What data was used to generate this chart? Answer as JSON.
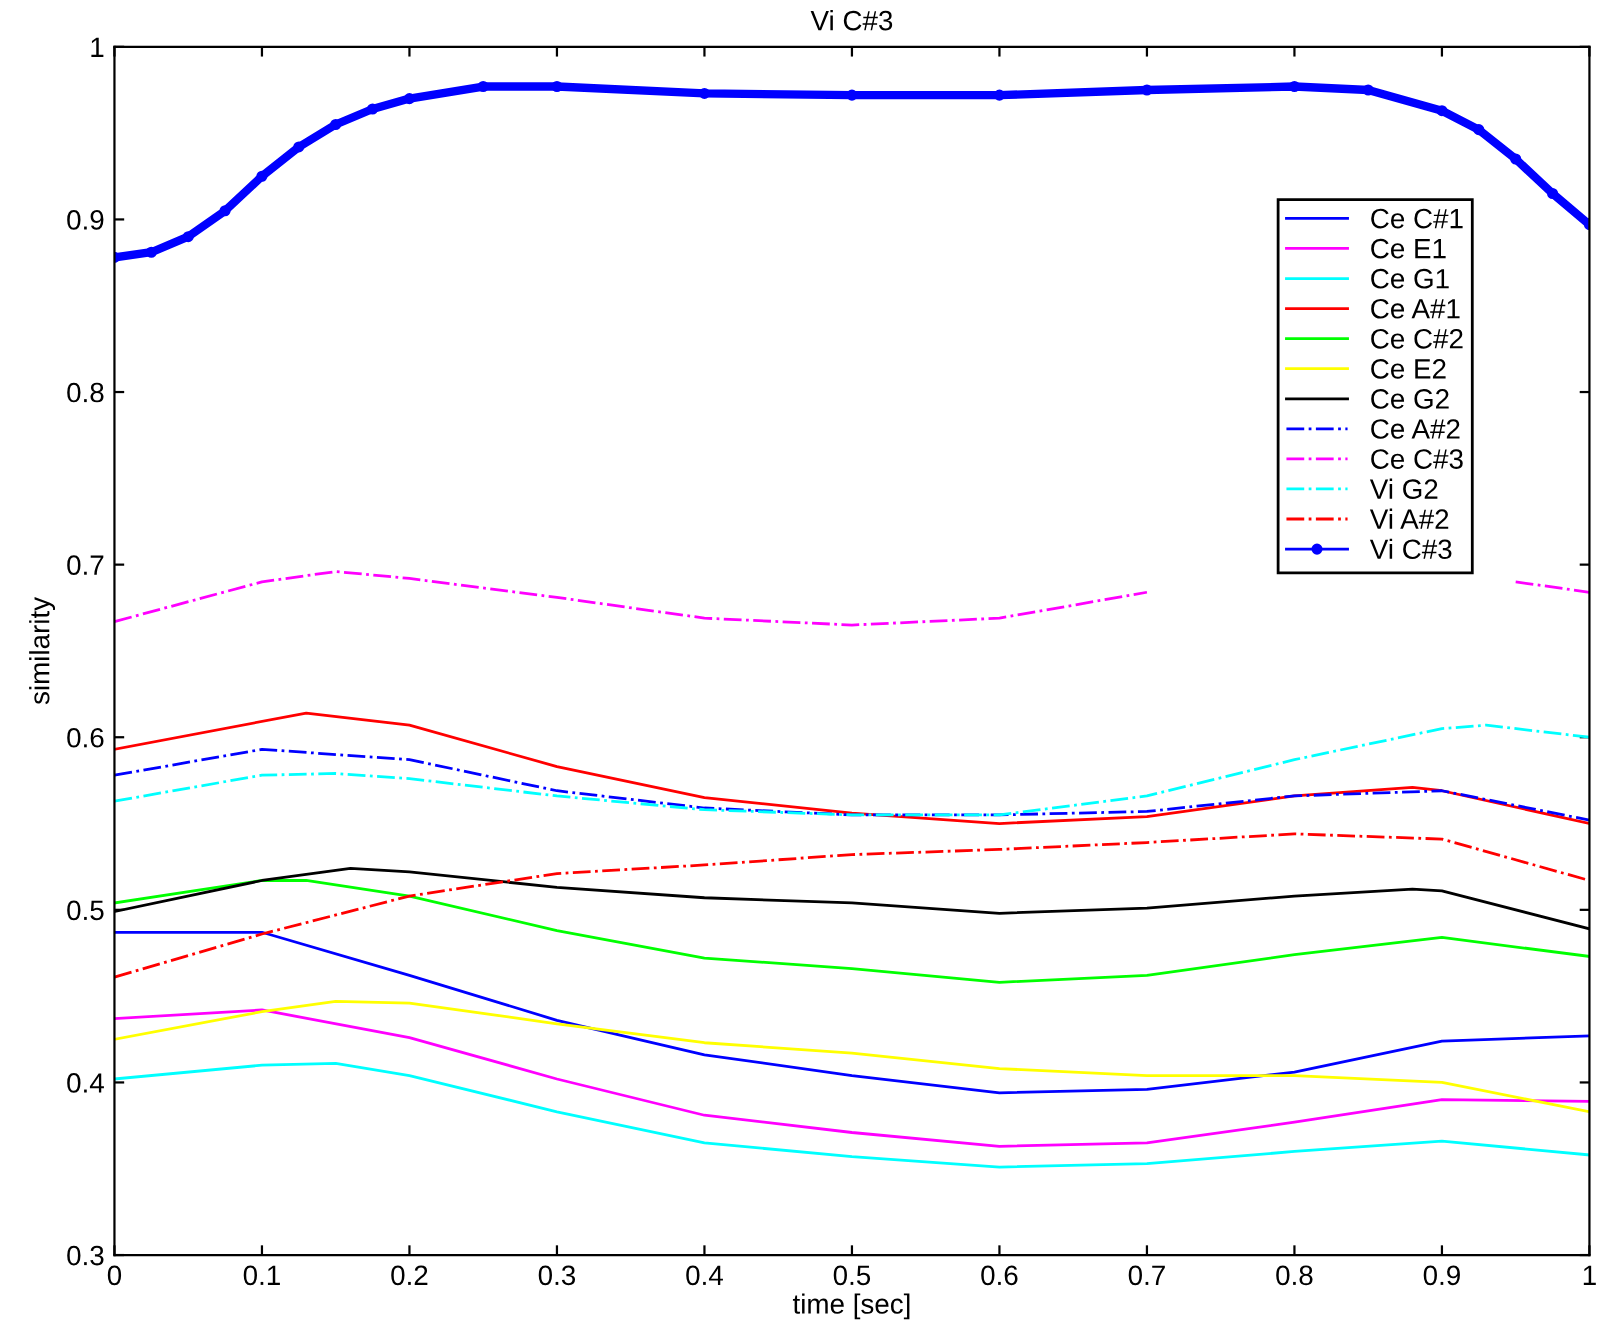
{
  "chart_data": {
    "type": "line",
    "title": "Vi C#3",
    "xlabel": "time [sec]",
    "ylabel": "similarity",
    "xlim": [
      0,
      1
    ],
    "xticks": [
      0,
      0.1,
      0.2,
      0.3,
      0.4,
      0.5,
      0.6,
      0.7,
      0.8,
      0.9,
      1
    ],
    "ylim": [
      0.3,
      1
    ],
    "yticks": [
      0.3,
      0.4,
      0.5,
      0.6,
      0.7,
      0.8,
      0.9,
      1
    ],
    "grid": false,
    "legend": "top right",
    "series": [
      {
        "name": "Ce C#1",
        "color": "#0000ff",
        "line_style": "solid",
        "x": [
          0,
          0.1,
          0.2,
          0.3,
          0.4,
          0.5,
          0.6,
          0.7,
          0.8,
          0.9,
          1
        ],
        "values": [
          0.487,
          0.487,
          0.462,
          0.436,
          0.416,
          0.404,
          0.394,
          0.396,
          0.406,
          0.424,
          0.427
        ]
      },
      {
        "name": "Ce E1",
        "color": "#ff00ff",
        "line_style": "solid",
        "x": [
          0,
          0.1,
          0.2,
          0.3,
          0.4,
          0.5,
          0.6,
          0.7,
          0.8,
          0.9,
          1
        ],
        "values": [
          0.437,
          0.442,
          0.426,
          0.402,
          0.381,
          0.371,
          0.363,
          0.365,
          0.377,
          0.39,
          0.389
        ]
      },
      {
        "name": "Ce G1",
        "color": "#00ffff",
        "line_style": "solid",
        "x": [
          0,
          0.1,
          0.15,
          0.2,
          0.3,
          0.4,
          0.5,
          0.6,
          0.7,
          0.8,
          0.9,
          1
        ],
        "values": [
          0.402,
          0.41,
          0.411,
          0.404,
          0.383,
          0.365,
          0.357,
          0.351,
          0.353,
          0.36,
          0.366,
          0.358
        ]
      },
      {
        "name": "Ce A#1",
        "color": "#ff0000",
        "line_style": "solid",
        "x": [
          0,
          0.13,
          0.2,
          0.3,
          0.4,
          0.5,
          0.6,
          0.7,
          0.8,
          0.88,
          0.9,
          1
        ],
        "values": [
          0.593,
          0.614,
          0.607,
          0.583,
          0.565,
          0.556,
          0.55,
          0.554,
          0.566,
          0.571,
          0.569,
          0.55
        ]
      },
      {
        "name": "Ce C#2",
        "color": "#00ff00",
        "line_style": "solid",
        "x": [
          0,
          0.1,
          0.13,
          0.2,
          0.3,
          0.4,
          0.5,
          0.6,
          0.7,
          0.8,
          0.9,
          1
        ],
        "values": [
          0.504,
          0.517,
          0.517,
          0.508,
          0.488,
          0.472,
          0.466,
          0.458,
          0.462,
          0.474,
          0.484,
          0.473
        ]
      },
      {
        "name": "Ce E2",
        "color": "#ffff00",
        "line_style": "solid",
        "x": [
          0,
          0.1,
          0.15,
          0.2,
          0.3,
          0.4,
          0.5,
          0.6,
          0.7,
          0.8,
          0.9,
          1
        ],
        "values": [
          0.425,
          0.441,
          0.447,
          0.446,
          0.434,
          0.423,
          0.417,
          0.408,
          0.404,
          0.404,
          0.4,
          0.383
        ]
      },
      {
        "name": "Ce G2",
        "color": "#000000",
        "line_style": "solid",
        "x": [
          0,
          0.1,
          0.16,
          0.2,
          0.3,
          0.4,
          0.5,
          0.6,
          0.7,
          0.8,
          0.88,
          0.9,
          1
        ],
        "values": [
          0.499,
          0.517,
          0.524,
          0.522,
          0.513,
          0.507,
          0.504,
          0.498,
          0.501,
          0.508,
          0.512,
          0.511,
          0.489
        ]
      },
      {
        "name": "Ce A#2",
        "color": "#0000ff",
        "line_style": "dashdot",
        "x": [
          0,
          0.1,
          0.2,
          0.3,
          0.4,
          0.5,
          0.6,
          0.7,
          0.8,
          0.9,
          1
        ],
        "values": [
          0.578,
          0.593,
          0.587,
          0.569,
          0.559,
          0.555,
          0.555,
          0.557,
          0.566,
          0.569,
          0.552
        ]
      },
      {
        "name": "Ce C#3",
        "color": "#ff00ff",
        "line_style": "dashdot",
        "x": [
          0,
          0.1,
          0.15,
          0.2,
          0.3,
          0.4,
          0.5,
          0.6,
          0.7,
          0.8,
          0.9,
          0.95,
          1
        ],
        "values": [
          0.667,
          0.69,
          0.696,
          0.692,
          0.681,
          0.669,
          0.665,
          0.669,
          0.684,
          null,
          null,
          0.69,
          0.684
        ]
      },
      {
        "name": "Vi G2",
        "color": "#00ffff",
        "line_style": "dashdot",
        "x": [
          0,
          0.1,
          0.15,
          0.2,
          0.3,
          0.4,
          0.5,
          0.6,
          0.7,
          0.8,
          0.9,
          0.93,
          1
        ],
        "values": [
          0.563,
          0.578,
          0.579,
          0.576,
          0.566,
          0.558,
          0.555,
          0.555,
          0.566,
          0.587,
          0.605,
          0.607,
          0.6
        ]
      },
      {
        "name": "Vi A#2",
        "color": "#ff0000",
        "line_style": "dashdot",
        "x": [
          0,
          0.1,
          0.2,
          0.3,
          0.4,
          0.5,
          0.6,
          0.7,
          0.8,
          0.9,
          1
        ],
        "values": [
          0.461,
          0.486,
          0.508,
          0.521,
          0.526,
          0.532,
          0.535,
          0.539,
          0.544,
          0.541,
          0.517
        ]
      },
      {
        "name": "Vi C#3",
        "color": "#0000ff",
        "line_style": "solid",
        "marker": "circle",
        "x": [
          0,
          0.025,
          0.05,
          0.075,
          0.1,
          0.125,
          0.15,
          0.175,
          0.2,
          0.25,
          0.3,
          0.4,
          0.5,
          0.6,
          0.7,
          0.8,
          0.85,
          0.9,
          0.925,
          0.95,
          0.975,
          1
        ],
        "values": [
          0.878,
          0.881,
          0.89,
          0.905,
          0.925,
          0.942,
          0.955,
          0.964,
          0.97,
          0.977,
          0.977,
          0.973,
          0.972,
          0.972,
          0.975,
          0.977,
          0.975,
          0.963,
          0.952,
          0.935,
          0.915,
          0.897
        ]
      }
    ]
  }
}
